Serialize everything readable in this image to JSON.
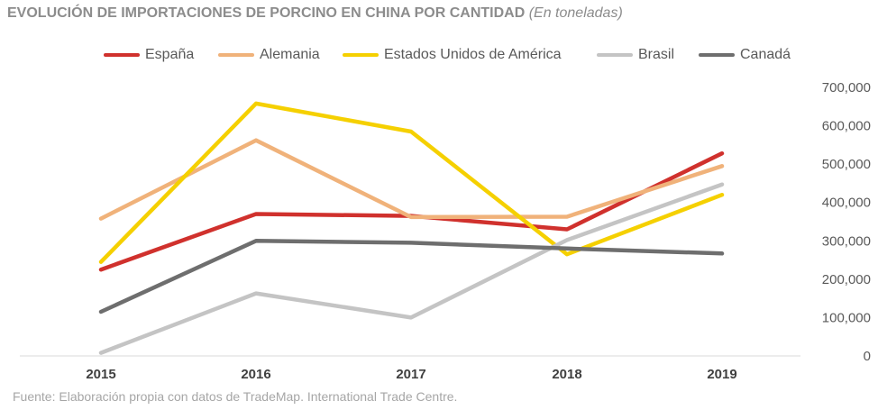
{
  "title": {
    "main": "EVOLUCIÓN DE IMPORTACIONES DE PORCINO EN CHINA POR CANTIDAD",
    "sub": "(En toneladas)"
  },
  "source": "Fuente: Elaboración propia con datos de TradeMap. International Trade Centre.",
  "chart_data": {
    "type": "line",
    "title": "EVOLUCIÓN DE IMPORTACIONES DE PORCINO EN CHINA POR CANTIDAD (En toneladas)",
    "xlabel": "",
    "ylabel": "",
    "categories": [
      "2015",
      "2016",
      "2017",
      "2018",
      "2019"
    ],
    "ylim": [
      0,
      700000
    ],
    "yticks": [
      0,
      100000,
      200000,
      300000,
      400000,
      500000,
      600000,
      700000
    ],
    "ytick_labels": [
      "0",
      "100,000",
      "200,000",
      "300,000",
      "400,000",
      "500,000",
      "600,000",
      "700,000"
    ],
    "y_axis_position": "right",
    "grid": false,
    "legend_position": "top",
    "series": [
      {
        "name": "España",
        "color": "#d0312d",
        "values": [
          225000,
          370000,
          365000,
          330000,
          528000
        ]
      },
      {
        "name": "Alemania",
        "color": "#f0b27a",
        "values": [
          358000,
          562000,
          362000,
          363000,
          495000
        ]
      },
      {
        "name": "Estados Unidos de América",
        "color": "#f5d000",
        "values": [
          245000,
          658000,
          585000,
          265000,
          420000
        ]
      },
      {
        "name": "Brasil",
        "color": "#c4c4c4",
        "values": [
          8000,
          163000,
          100000,
          302000,
          447000
        ]
      },
      {
        "name": "Canadá",
        "color": "#6e6e6e",
        "values": [
          115000,
          300000,
          295000,
          280000,
          267000
        ]
      }
    ]
  }
}
